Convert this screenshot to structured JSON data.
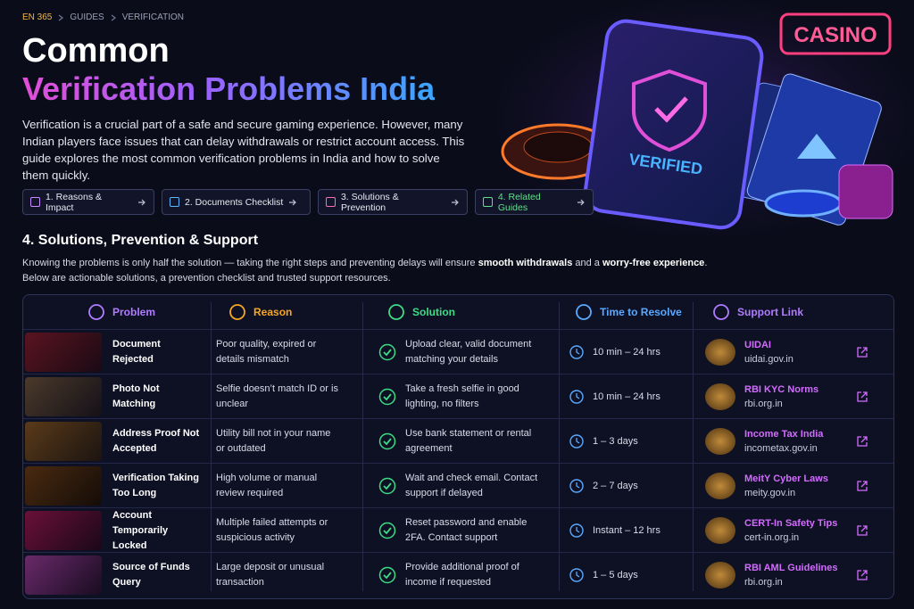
{
  "breadcrumb": [
    "EN 365",
    "GUIDES",
    "VERIFICATION"
  ],
  "header": {
    "title_line1": "Common",
    "title_line2": "Verification Problems India",
    "intro": "Verification is a crucial part of a safe and secure gaming experience. However, many Indian players face issues that can delay withdrawals or restrict account access. This guide explores the most common verification problems in India and how to solve them quickly."
  },
  "nav": [
    "1. Reasons & Impact",
    "2. Documents Checklist",
    "3. Solutions & Prevention",
    "4. Related Guides"
  ],
  "hero": {
    "sign": "CASINO",
    "phone_badge": "VERIFIED"
  },
  "section": {
    "heading": "4. Solutions, Prevention & Support",
    "text_parts": [
      "Knowing the problems is only half the solution — taking the right steps and preventing delays will ensure ",
      "smooth withdrawals",
      " and a ",
      "worry-free experience",
      "."
    ],
    "text_line2": "Below are actionable solutions, a prevention checklist and trusted support resources."
  },
  "table": {
    "headers": [
      "Problem",
      "Reason",
      "Solution",
      "Time to Resolve",
      "Support Link"
    ],
    "rows": [
      {
        "problem": "Document Rejected",
        "reason": "Poor quality, expired or details mismatch",
        "solution": "Upload clear, valid document matching your details",
        "time": "10 min – 24 hrs",
        "link_name": "UIDAI",
        "link_url": "uidai.gov.in"
      },
      {
        "problem": "Photo Not Matching",
        "reason": "Selfie doesn’t match ID or is unclear",
        "solution": "Take a fresh selfie in good lighting, no filters",
        "time": "10 min – 24 hrs",
        "link_name": "RBI KYC Norms",
        "link_url": "rbi.org.in"
      },
      {
        "problem": "Address Proof Not Accepted",
        "reason": "Utility bill not in your name or outdated",
        "solution": "Use bank statement or rental agreement",
        "time": "1 – 3 days",
        "link_name": "Income Tax India",
        "link_url": "incometax.gov.in"
      },
      {
        "problem": "Verification Taking Too Long",
        "reason": "High volume or manual review required",
        "solution": "Wait and check email. Contact support if delayed",
        "time": "2 – 7 days",
        "link_name": "MeitY Cyber Laws",
        "link_url": "meity.gov.in"
      },
      {
        "problem": "Account Temporarily Locked",
        "reason": "Multiple failed attempts or suspicious activity",
        "solution": "Reset password and enable 2FA. Contact support",
        "time": "Instant – 12 hrs",
        "link_name": "CERT-In Safety Tips",
        "link_url": "cert-in.org.in"
      },
      {
        "problem": "Source of Funds Query",
        "reason": "Large deposit or unusual transaction",
        "solution": "Provide additional proof of income if requested",
        "time": "1 – 5 days",
        "link_name": "RBI AML Guidelines",
        "link_url": "rbi.org.in"
      }
    ]
  }
}
